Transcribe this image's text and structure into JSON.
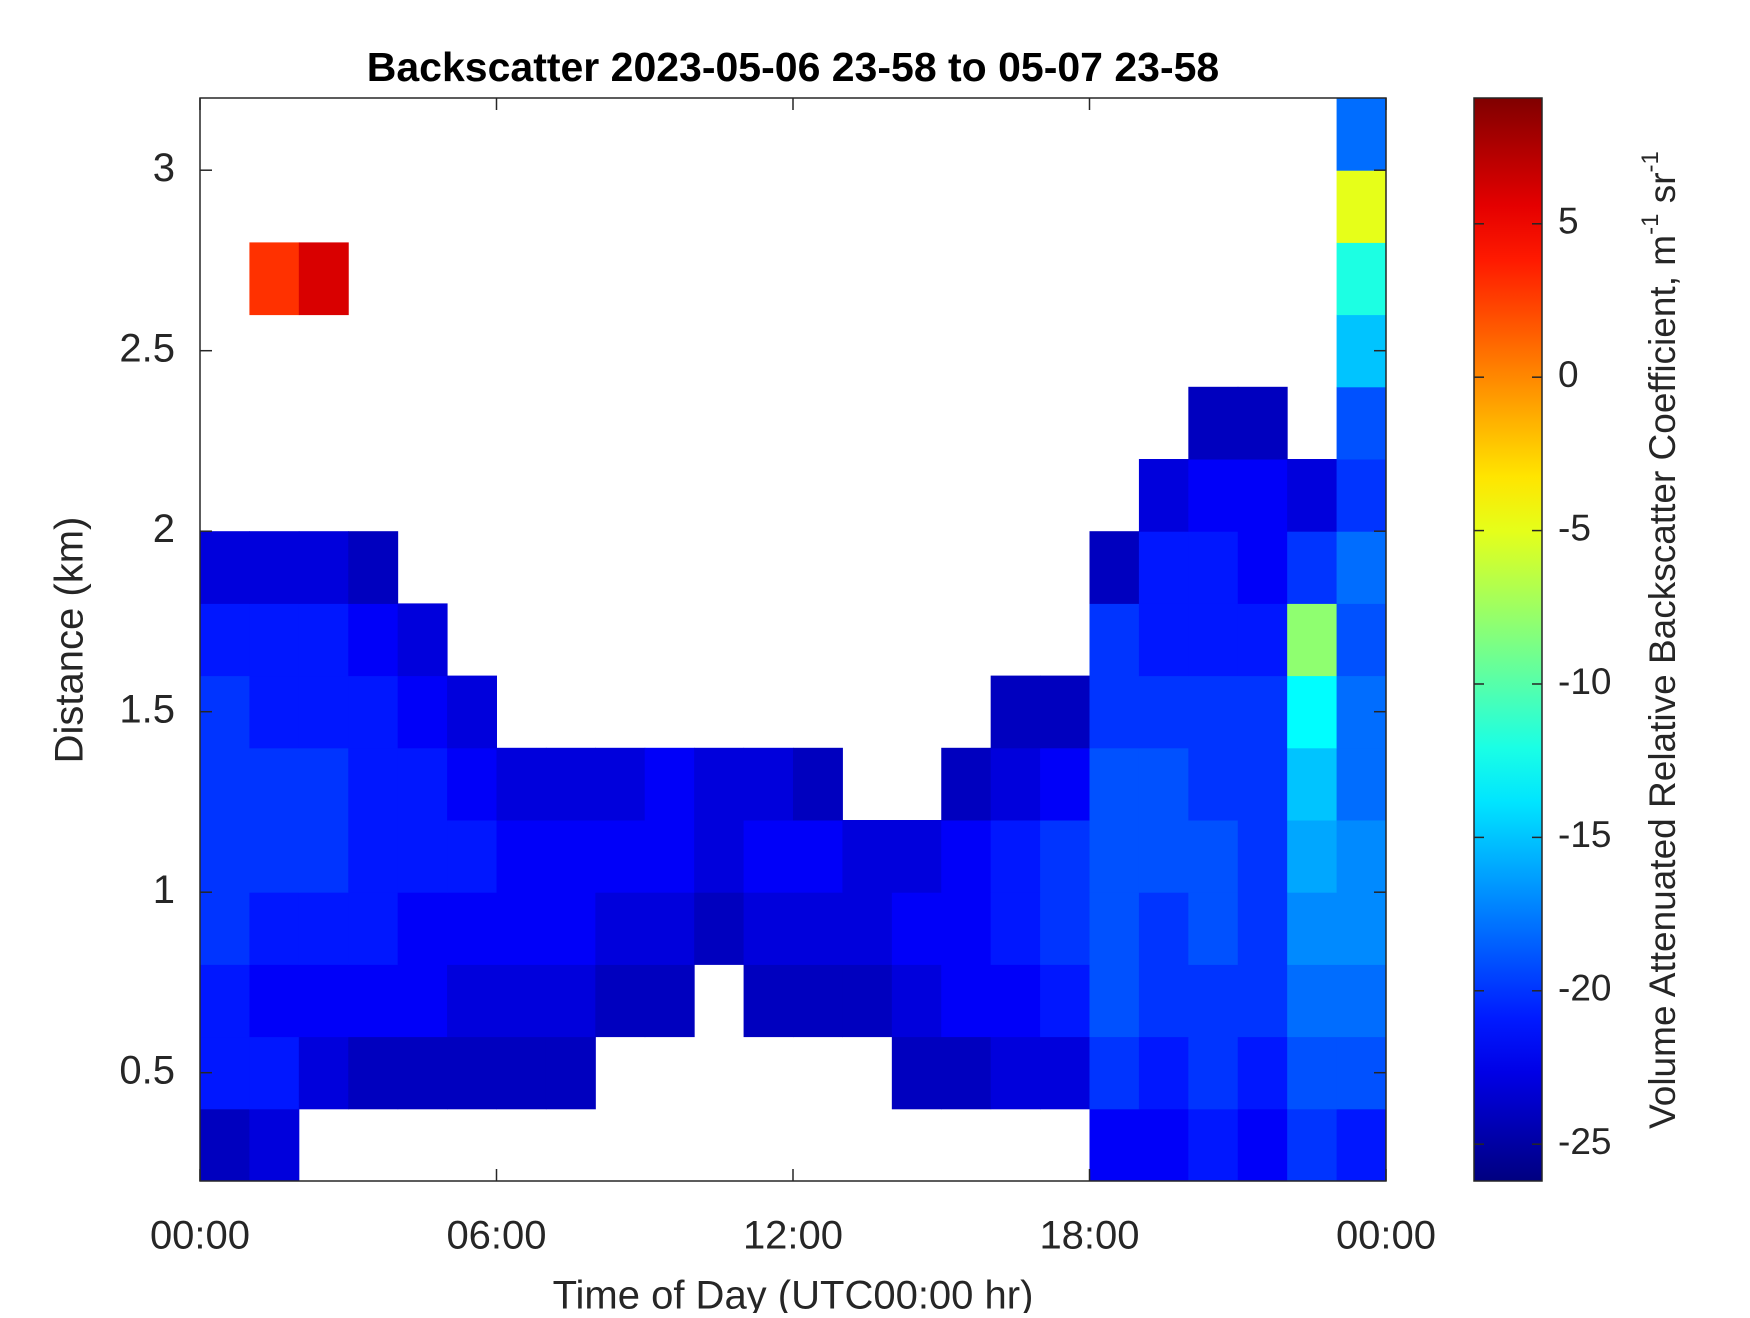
{
  "chart_data": {
    "type": "heatmap",
    "title": "Backscatter 2023-05-06 23-58 to 05-07 23-58",
    "x_label": "Time of Day (UTC00:00 hr)",
    "y_label": "Distance (km)",
    "colorbar_label": [
      "Volume Attenuated Relative Backscatter Coefficient, m",
      "-1",
      " sr",
      "-1"
    ],
    "colormap": "jet",
    "xlim": [
      0,
      24
    ],
    "ylim": [
      0.2,
      3.2
    ],
    "xticks": [
      {
        "value": 0,
        "label": "00:00"
      },
      {
        "value": 6,
        "label": "06:00"
      },
      {
        "value": 12,
        "label": "12:00"
      },
      {
        "value": 18,
        "label": "18:00"
      },
      {
        "value": 24,
        "label": "00:00"
      }
    ],
    "yticks": [
      0.5,
      1,
      1.5,
      2,
      2.5,
      3
    ],
    "clim": [
      -26.2,
      9.1
    ],
    "cticks": [
      -25,
      -20,
      -15,
      -10,
      -5,
      0,
      5
    ],
    "xbins": [
      0,
      1,
      2,
      3,
      4,
      5,
      6,
      7,
      8,
      9,
      10,
      11,
      12,
      13,
      14,
      15,
      16,
      17,
      18,
      19,
      20,
      21,
      22,
      23,
      24
    ],
    "ybins": [
      0.2,
      0.4,
      0.6,
      0.8,
      1.0,
      1.2,
      1.4,
      1.6,
      1.8,
      2.0,
      2.2,
      2.4,
      2.6,
      2.8,
      3.0,
      3.2
    ],
    "z": [
      [
        -24,
        -23,
        null,
        null,
        null,
        null,
        null,
        null,
        null,
        null,
        null,
        null,
        null,
        null,
        null,
        null,
        null,
        null,
        -22,
        -22,
        -21,
        -22,
        -20,
        -21
      ],
      [
        -21,
        -21,
        -23,
        -24,
        -24,
        -24,
        -24,
        -24,
        null,
        null,
        null,
        null,
        null,
        null,
        -24,
        -24,
        -23,
        -23,
        -20,
        -21,
        -20,
        -21,
        -19,
        -19
      ],
      [
        -21,
        -22,
        -22,
        -22,
        -22,
        -23,
        -23,
        -23,
        -24,
        -24,
        null,
        -24,
        -24,
        -24,
        -23,
        -22,
        -22,
        -21,
        -19,
        -20,
        -20,
        -20,
        -18,
        -18
      ],
      [
        -20,
        -21,
        -21,
        -21,
        -22,
        -22,
        -22,
        -22,
        -23,
        -23,
        -24,
        -23,
        -23,
        -23,
        -22,
        -22,
        -21,
        -20,
        -19,
        -20,
        -19,
        -20,
        -17,
        -17
      ],
      [
        -20,
        -20,
        -20,
        -21,
        -21,
        -21,
        -22,
        -22,
        -22,
        -22,
        -23,
        -22,
        -22,
        -23,
        -23,
        -22,
        -21,
        -20,
        -19,
        -19,
        -19,
        -20,
        -16,
        -17
      ],
      [
        -20,
        -20,
        -20,
        -21,
        -21,
        -22,
        -23,
        -23,
        -23,
        -22,
        -23,
        -23,
        -24,
        null,
        null,
        -24,
        -23,
        -22,
        -19,
        -19,
        -20,
        -20,
        -15,
        -18
      ],
      [
        -20,
        -21,
        -21,
        -21,
        -22,
        -23,
        null,
        null,
        null,
        null,
        null,
        null,
        null,
        null,
        null,
        null,
        -24,
        -24,
        -20,
        -20,
        -20,
        -20,
        -13,
        -18
      ],
      [
        -21,
        -21,
        -21,
        -22,
        -23,
        null,
        null,
        null,
        null,
        null,
        null,
        null,
        null,
        null,
        null,
        null,
        null,
        null,
        -20,
        -21,
        -21,
        -21,
        -8,
        -19
      ],
      [
        -23,
        -23,
        -23,
        -24,
        null,
        null,
        null,
        null,
        null,
        null,
        null,
        null,
        null,
        null,
        null,
        null,
        null,
        null,
        -24,
        -21,
        -21,
        -22,
        -20,
        -18
      ],
      [
        null,
        null,
        null,
        null,
        null,
        null,
        null,
        null,
        null,
        null,
        null,
        null,
        null,
        null,
        null,
        null,
        null,
        null,
        null,
        -23,
        -22,
        -22,
        -23,
        -20
      ],
      [
        null,
        null,
        null,
        null,
        null,
        null,
        null,
        null,
        null,
        null,
        null,
        null,
        null,
        null,
        null,
        null,
        null,
        null,
        null,
        null,
        -24,
        -24,
        null,
        -19
      ],
      [
        null,
        null,
        null,
        null,
        null,
        null,
        null,
        null,
        null,
        null,
        null,
        null,
        null,
        null,
        null,
        null,
        null,
        null,
        null,
        null,
        null,
        null,
        null,
        -15
      ],
      [
        null,
        3,
        6,
        null,
        null,
        null,
        null,
        null,
        null,
        null,
        null,
        null,
        null,
        null,
        null,
        null,
        null,
        null,
        null,
        null,
        null,
        null,
        null,
        -12
      ],
      [
        null,
        null,
        null,
        null,
        null,
        null,
        null,
        null,
        null,
        null,
        null,
        null,
        null,
        null,
        null,
        null,
        null,
        null,
        null,
        null,
        null,
        null,
        null,
        -5
      ],
      [
        null,
        null,
        null,
        null,
        null,
        null,
        null,
        null,
        null,
        null,
        null,
        null,
        null,
        null,
        null,
        null,
        null,
        null,
        null,
        null,
        null,
        null,
        null,
        -18
      ]
    ]
  }
}
